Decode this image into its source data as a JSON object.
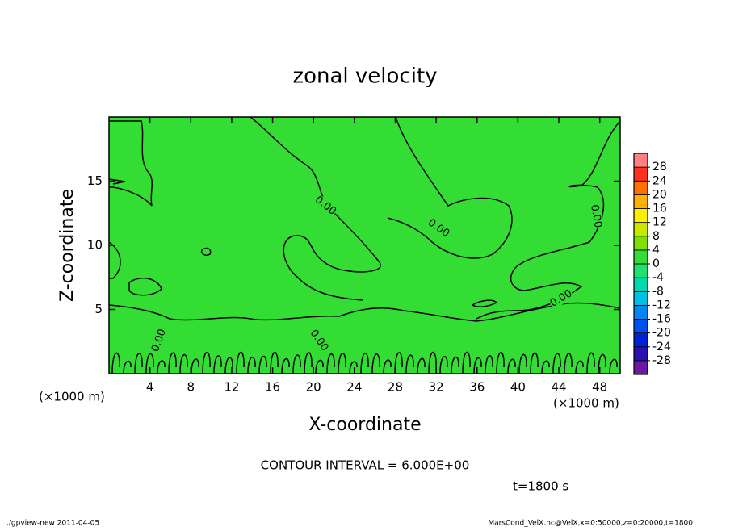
{
  "chart_data": {
    "type": "contour",
    "title": "zonal velocity",
    "x_label": "X-coordinate",
    "y_label": "Z-coordinate",
    "x_unit": "(×1000 m)",
    "y_unit": "(×1000 m)",
    "xlim": [
      0,
      50
    ],
    "xticks": [
      4,
      8,
      12,
      16,
      20,
      24,
      28,
      32,
      36,
      40,
      44,
      48
    ],
    "ylim": [
      0,
      20
    ],
    "yticks": [
      5,
      10,
      15
    ],
    "contour_levels": [
      {
        "value": 0,
        "label": "0.00"
      }
    ],
    "contour_interval_text": "CONTOUR INTERVAL = 6.000E+00",
    "time_text": "t=1800 s",
    "colorbar": {
      "lim": [
        -32,
        32
      ],
      "ticks": [
        -28,
        -24,
        -20,
        -16,
        -12,
        -8,
        -4,
        0,
        4,
        8,
        12,
        16,
        20,
        24,
        28
      ],
      "colors": [
        "#6a1aa0",
        "#2a10b0",
        "#0020d8",
        "#0050f0",
        "#0088f0",
        "#00c0e8",
        "#00d8b0",
        "#20e070",
        "#33dd33",
        "#80e000",
        "#c8e800",
        "#ffee00",
        "#ffb000",
        "#ff7000",
        "#ff3020",
        "#ff8080"
      ]
    },
    "footer_left": "./gpview-new  2011-04-05",
    "footer_right": "MarsCond_VelX.nc@VelX,x=0:50000,z=0:20000,t=1800"
  }
}
